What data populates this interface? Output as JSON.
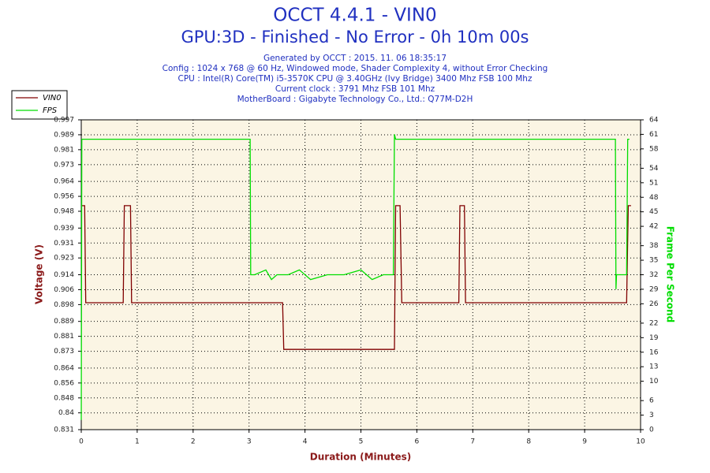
{
  "chart_data": {
    "type": "line",
    "title": "OCCT 4.4.1 - VIN0",
    "subtitle": "GPU:3D - Finished - No Error - 0h 10m 00s",
    "info": [
      "Generated by OCCT : 2015. 11. 06 18:35:17",
      "Config : 1024 x 768 @ 60 Hz, Windowed mode, Shader Complexity 4, without Error Checking",
      "CPU : Intel(R) Core(TM) i5-3570K CPU @ 3.40GHz (Ivy Bridge) 3400 Mhz FSB 100 Mhz",
      "Current clock : 3791 Mhz FSB 101 Mhz",
      "MotherBoard : Gigabyte Technology Co., Ltd.: Q77M-D2H"
    ],
    "xlabel": "Duration (Minutes)",
    "ylabel": "Voltage (V)",
    "y2label": "Frame Per Second",
    "xlim": [
      0,
      10
    ],
    "xticks": [
      0,
      1,
      2,
      3,
      4,
      5,
      6,
      7,
      8,
      9,
      10
    ],
    "ylim": [
      0.831,
      0.997
    ],
    "yticks": [
      0.831,
      0.84,
      0.848,
      0.856,
      0.864,
      0.873,
      0.881,
      0.889,
      0.898,
      0.906,
      0.914,
      0.923,
      0.931,
      0.939,
      0.948,
      0.956,
      0.964,
      0.973,
      0.981,
      0.989,
      0.997
    ],
    "y2lim": [
      0,
      64
    ],
    "y2ticks": [
      0,
      3,
      6,
      10,
      13,
      16,
      19,
      22,
      26,
      29,
      32,
      35,
      38,
      42,
      45,
      48,
      51,
      54,
      58,
      61,
      64
    ],
    "grid": true,
    "legend": "top-left",
    "series": [
      {
        "name": "VIN0",
        "color": "#800000",
        "x": [
          0,
          0.06,
          0.08,
          0.75,
          0.77,
          0.88,
          0.9,
          3.6,
          3.62,
          5.6,
          5.62,
          5.7,
          5.73,
          6.75,
          6.77,
          6.85,
          6.87,
          9.75,
          9.78,
          9.83
        ],
        "values": [
          0.951,
          0.951,
          0.899,
          0.899,
          0.951,
          0.951,
          0.899,
          0.899,
          0.874,
          0.874,
          0.951,
          0.951,
          0.899,
          0.899,
          0.951,
          0.951,
          0.899,
          0.899,
          0.951,
          0.951
        ]
      },
      {
        "name": "FPS",
        "color": "#00dd00",
        "axis": "y2",
        "x": [
          0,
          0.01,
          0.02,
          3.02,
          3.03,
          3.1,
          3.3,
          3.4,
          3.5,
          3.7,
          3.9,
          4.1,
          4.4,
          4.7,
          5.0,
          5.2,
          5.4,
          5.58,
          5.6,
          5.62,
          6.0,
          9.55,
          9.56,
          9.57,
          9.6,
          9.75,
          9.77,
          9.8
        ],
        "values": [
          2,
          60,
          60,
          60,
          32,
          32,
          33,
          31,
          32,
          32,
          33,
          31,
          32,
          32,
          33,
          31,
          32,
          32,
          61,
          60,
          60,
          60,
          29,
          32,
          32,
          32,
          60,
          60
        ]
      }
    ]
  }
}
